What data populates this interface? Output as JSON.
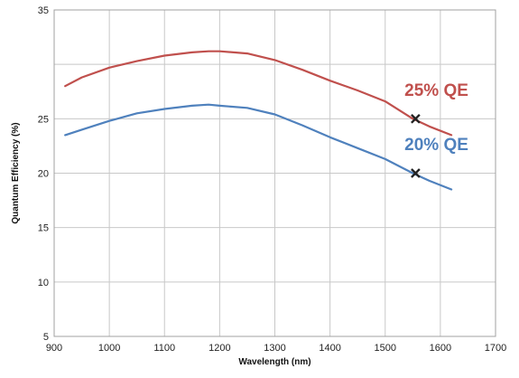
{
  "chart_data": {
    "type": "line",
    "title": "",
    "xlabel": "Wavelength (nm)",
    "ylabel": "Quantum Efficiency (%)",
    "xlim": [
      900,
      1700
    ],
    "ylim": [
      5,
      35
    ],
    "xticks": [
      900,
      1000,
      1100,
      1200,
      1300,
      1400,
      1500,
      1600,
      1700
    ],
    "yticks": [
      5,
      10,
      15,
      20,
      25,
      35
    ],
    "grid": true,
    "legend": "none",
    "series": [
      {
        "color": "#c0504d",
        "x": [
          920,
          950,
          1000,
          1050,
          1100,
          1150,
          1180,
          1200,
          1250,
          1300,
          1350,
          1400,
          1450,
          1500,
          1550,
          1580,
          1620
        ],
        "y": [
          28.0,
          28.8,
          29.7,
          30.3,
          30.8,
          31.1,
          31.2,
          31.2,
          31.0,
          30.4,
          29.5,
          28.5,
          27.6,
          26.6,
          25.0,
          24.3,
          23.5
        ]
      },
      {
        "color": "#4f81bd",
        "x": [
          920,
          950,
          1000,
          1050,
          1100,
          1150,
          1180,
          1200,
          1250,
          1300,
          1350,
          1400,
          1450,
          1500,
          1550,
          1580,
          1620
        ],
        "y": [
          23.5,
          24.0,
          24.8,
          25.5,
          25.9,
          26.2,
          26.3,
          26.2,
          26.0,
          25.4,
          24.4,
          23.3,
          22.3,
          21.3,
          20.0,
          19.3,
          18.5
        ]
      }
    ],
    "markers": [
      {
        "x": 1555,
        "y": 25.0,
        "symbol": "x"
      },
      {
        "x": 1555,
        "y": 20.0,
        "symbol": "x"
      }
    ],
    "annotations": [
      {
        "text": "25% QE",
        "x": 1535,
        "y": 27.1,
        "color": "#c0504d"
      },
      {
        "text": "20% QE",
        "x": 1535,
        "y": 22.1,
        "color": "#4f81bd"
      }
    ]
  }
}
